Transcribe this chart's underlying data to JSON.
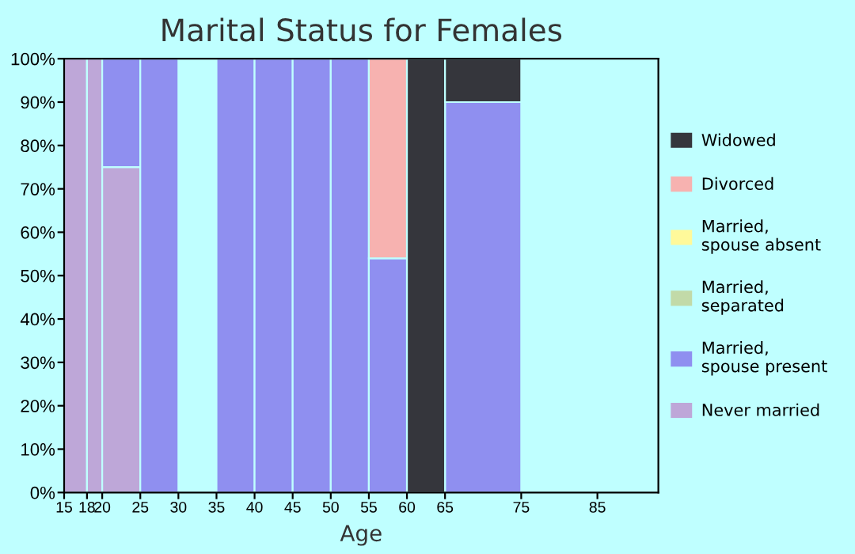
{
  "chart_data": {
    "type": "bar",
    "stacked": true,
    "title": "Marital Status for Females",
    "xlabel": "Age",
    "x": [
      16.5,
      19,
      22.5,
      27.5,
      32.5,
      37.5,
      42.5,
      47.5,
      52.5,
      57.5,
      62.5,
      70
    ],
    "series": [
      {
        "name": "Never married",
        "color": "#bea7d8",
        "values": [
          100,
          100,
          75,
          0,
          null,
          0,
          0,
          0,
          0,
          0,
          0,
          0
        ]
      },
      {
        "name": "Married,\nspouse present",
        "color": "#8f8ff0",
        "values": [
          0,
          0,
          25,
          100,
          null,
          100,
          100,
          100,
          100,
          54,
          0,
          90
        ]
      },
      {
        "name": "Married,\nseparated",
        "color": "#c2daa8",
        "values": [
          0,
          0,
          0,
          0,
          null,
          0,
          0,
          0,
          0,
          0,
          0,
          0
        ]
      },
      {
        "name": "Married,\nspouse absent",
        "color": "#fff99a",
        "values": [
          0,
          0,
          0,
          0,
          null,
          0,
          0,
          0,
          0,
          0,
          0,
          0
        ]
      },
      {
        "name": "Divorced",
        "color": "#f7b2b0",
        "values": [
          0,
          0,
          0,
          0,
          null,
          0,
          0,
          0,
          0,
          46,
          0,
          0
        ]
      },
      {
        "name": "Widowed",
        "color": "#35363c",
        "values": [
          0,
          0,
          0,
          0,
          null,
          0,
          0,
          0,
          0,
          0,
          100,
          10
        ]
      }
    ],
    "xlim": [
      15,
      93
    ],
    "xticks": [
      15,
      18,
      20,
      25,
      30,
      35,
      40,
      45,
      50,
      55,
      60,
      65,
      75,
      85
    ],
    "ylim": [
      0,
      100
    ],
    "yticks": [
      {
        "value": 0,
        "label": "0%"
      },
      {
        "value": 10,
        "label": "10%"
      },
      {
        "value": 20,
        "label": "20%"
      },
      {
        "value": 30,
        "label": "30%"
      },
      {
        "value": 40,
        "label": "40%"
      },
      {
        "value": 50,
        "label": "50%"
      },
      {
        "value": 60,
        "label": "60%"
      },
      {
        "value": 70,
        "label": "70%"
      },
      {
        "value": 80,
        "label": "80%"
      },
      {
        "value": 90,
        "label": "90%"
      },
      {
        "value": 100,
        "label": "100%"
      }
    ],
    "grid": false,
    "legend": "right"
  }
}
